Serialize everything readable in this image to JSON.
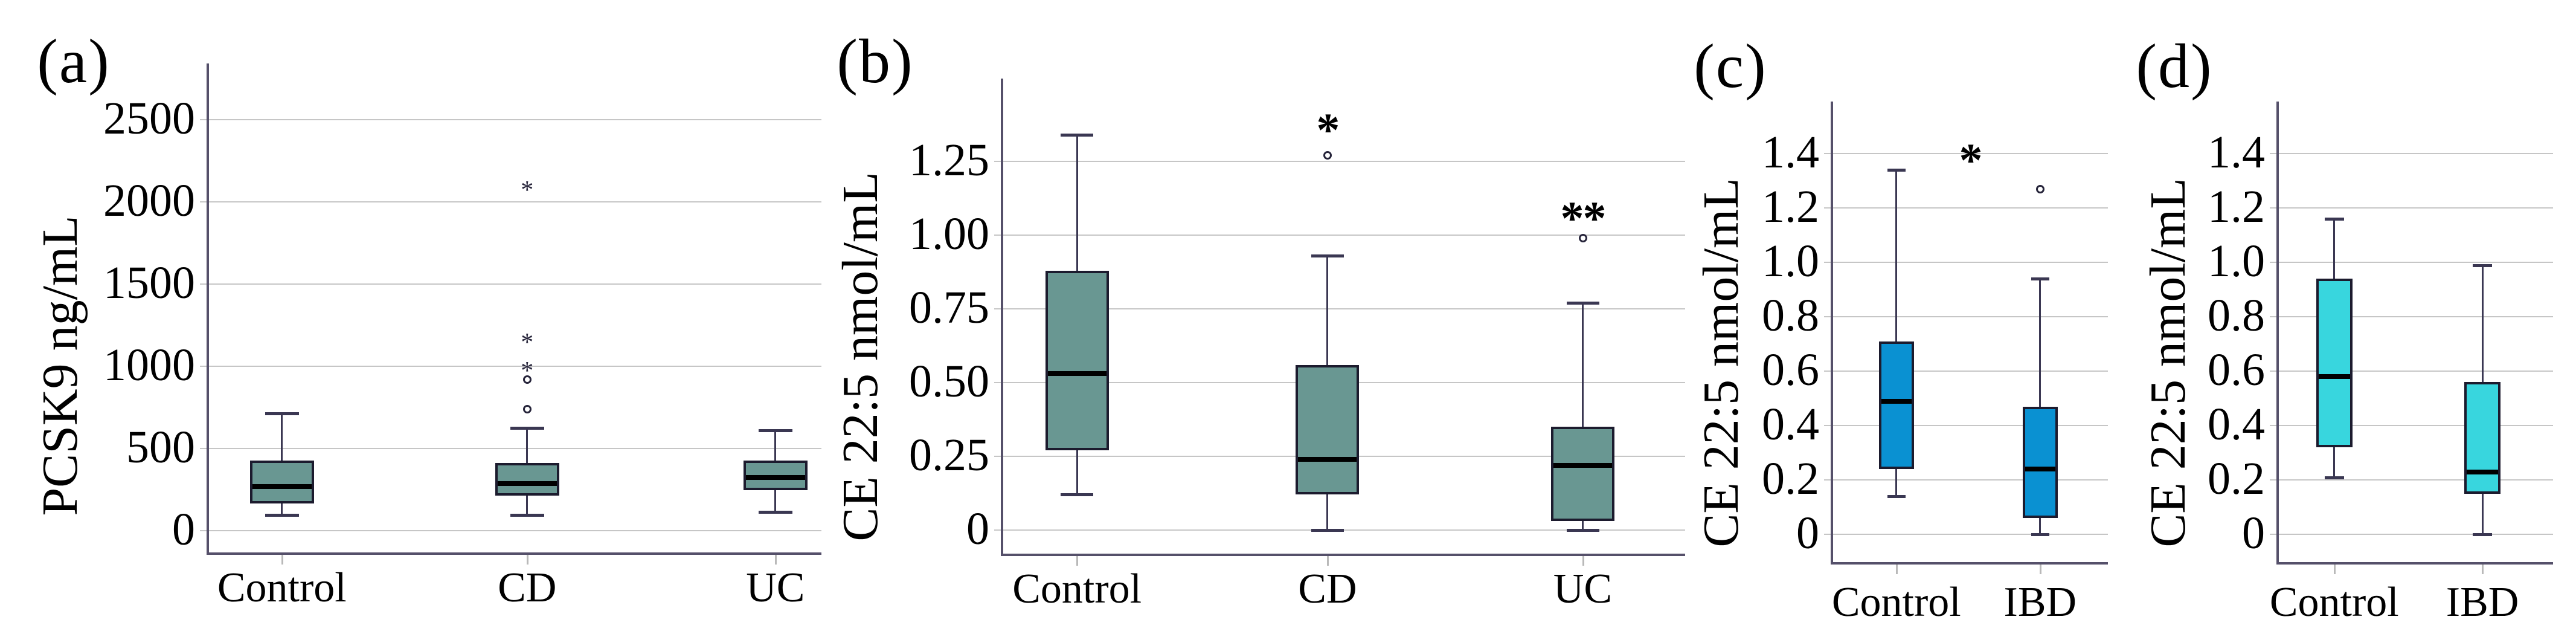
{
  "colors": {
    "teal_box": "#699792",
    "blue_box": "#0a91d2",
    "cyan_box": "#38d6de",
    "gridline": "#c6c6c6",
    "axis": "#55506a",
    "box_border": "#1c1b2e",
    "whisker": "#3a3752",
    "median": "#000000",
    "outlier": "#26243a",
    "text": "#000000",
    "background": "#ffffff"
  },
  "chart_data": [
    {
      "type": "box",
      "label": "(a)",
      "ylabel": "PCSK9 ng/mL",
      "yticks": [
        0,
        500,
        1000,
        1500,
        2000,
        2500
      ],
      "ytick_labels": [
        "0",
        "500",
        "1000",
        "1500",
        "2000",
        "2500"
      ],
      "ylim": [
        -150,
        2920
      ],
      "grid": true,
      "categories": [
        "Control",
        "CD",
        "UC"
      ],
      "box_color": "#699792",
      "boxes": [
        {
          "category": "Control",
          "whisker_low": 95,
          "q1": 165,
          "median": 270,
          "q3": 425,
          "whisker_high": 715,
          "outliers_circle": [],
          "outliers_star": []
        },
        {
          "category": "CD",
          "whisker_low": 95,
          "q1": 215,
          "median": 285,
          "q3": 410,
          "whisker_high": 625,
          "outliers_circle": [
            740,
            920
          ],
          "outliers_star": [
            990,
            1160,
            2090
          ]
        },
        {
          "category": "UC",
          "whisker_low": 115,
          "q1": 245,
          "median": 325,
          "q3": 425,
          "whisker_high": 610,
          "outliers_circle": [],
          "outliers_star": []
        }
      ],
      "significance": []
    },
    {
      "type": "box",
      "label": "(b)",
      "ylabel": "CE 22:5 nmol/mL",
      "yticks": [
        0,
        0.25,
        0.5,
        0.75,
        1.0,
        1.25
      ],
      "ytick_labels": [
        "0",
        "0.25",
        "0.50",
        "0.75",
        "1.00",
        "1.25"
      ],
      "ylim": [
        -0.08,
        1.53
      ],
      "grid": true,
      "categories": [
        "Control",
        "CD",
        "UC"
      ],
      "box_color": "#699792",
      "boxes": [
        {
          "category": "Control",
          "whisker_low": 0.12,
          "q1": 0.27,
          "median": 0.53,
          "q3": 0.88,
          "whisker_high": 1.34,
          "outliers_circle": [],
          "outliers_star": []
        },
        {
          "category": "CD",
          "whisker_low": 0.0,
          "q1": 0.12,
          "median": 0.24,
          "q3": 0.56,
          "whisker_high": 0.93,
          "outliers_circle": [
            1.27
          ],
          "outliers_star": []
        },
        {
          "category": "UC",
          "whisker_low": 0.0,
          "q1": 0.03,
          "median": 0.22,
          "q3": 0.35,
          "whisker_high": 0.77,
          "outliers_circle": [
            0.99
          ],
          "outliers_star": []
        }
      ],
      "significance": [
        {
          "text": "*",
          "category": "CD",
          "value": 1.38
        },
        {
          "text": "**",
          "category": "UC",
          "value": 1.08
        }
      ]
    },
    {
      "type": "box",
      "label": "(c)",
      "ylabel": "CE 22:5 nmol/mL",
      "yticks": [
        0,
        0.2,
        0.4,
        0.6,
        0.8,
        1.0,
        1.2,
        1.4
      ],
      "ytick_labels": [
        "0",
        "0.2",
        "0.4",
        "0.6",
        "0.8",
        "1.0",
        "1.2",
        "1.4"
      ],
      "ylim": [
        -0.11,
        1.59
      ],
      "grid": true,
      "categories": [
        "Control",
        "IBD"
      ],
      "box_color": "#0a91d2",
      "boxes": [
        {
          "category": "Control",
          "whisker_low": 0.14,
          "q1": 0.24,
          "median": 0.49,
          "q3": 0.71,
          "whisker_high": 1.34,
          "outliers_circle": [],
          "outliers_star": []
        },
        {
          "category": "IBD",
          "whisker_low": 0.0,
          "q1": 0.06,
          "median": 0.24,
          "q3": 0.47,
          "whisker_high": 0.94,
          "outliers_circle": [
            1.27
          ],
          "outliers_star": []
        }
      ],
      "significance": [
        {
          "text": "*",
          "x_frac": 0.5,
          "value": 1.4
        }
      ]
    },
    {
      "type": "box",
      "label": "(d)",
      "ylabel": "CE 22:5 nmol/mL",
      "yticks": [
        0,
        0.2,
        0.4,
        0.6,
        0.8,
        1.0,
        1.2,
        1.4
      ],
      "ytick_labels": [
        "0",
        "0.2",
        "0.4",
        "0.6",
        "0.8",
        "1.0",
        "1.2",
        "1.4"
      ],
      "ylim": [
        -0.11,
        1.59
      ],
      "grid": true,
      "categories": [
        "Control",
        "IBD"
      ],
      "box_color": "#38d6de",
      "boxes": [
        {
          "category": "Control",
          "whisker_low": 0.21,
          "q1": 0.32,
          "median": 0.58,
          "q3": 0.94,
          "whisker_high": 1.16,
          "outliers_circle": [],
          "outliers_star": []
        },
        {
          "category": "IBD",
          "whisker_low": 0.0,
          "q1": 0.15,
          "median": 0.23,
          "q3": 0.56,
          "whisker_high": 0.99,
          "outliers_circle": [],
          "outliers_star": []
        }
      ],
      "significance": []
    }
  ]
}
